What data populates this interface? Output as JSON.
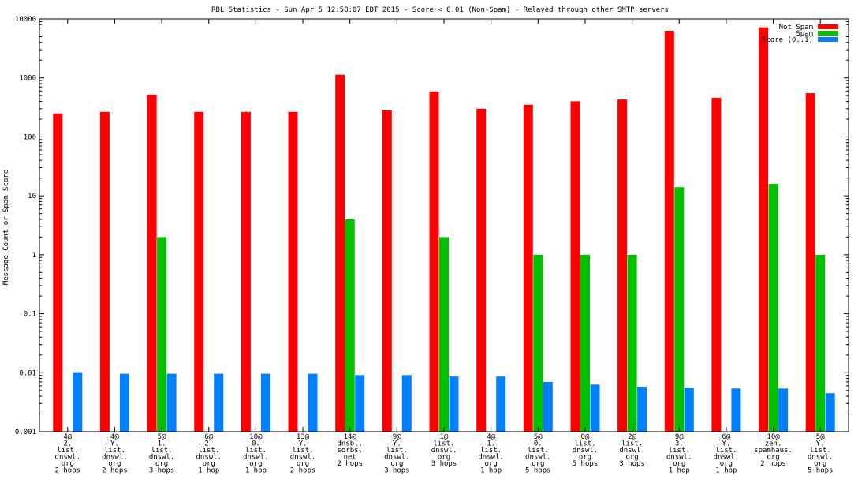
{
  "chart_data": {
    "type": "bar",
    "title": "RBL Statistics - Sun Apr  5 12:58:07 EDT 2015 - Score < 0.01 (Non-Spam) - Relayed through other SMTP servers",
    "xlabel": "",
    "ylabel": "Message Count or Spam Score",
    "yscale": "log",
    "ylim": [
      0.001,
      10000
    ],
    "yticks": [
      "0.001",
      "0.01",
      "0.1",
      "1",
      "10",
      "100",
      "1000",
      "10000"
    ],
    "legend_position": "top-right",
    "categories": [
      [
        "4@",
        "2.",
        "list.",
        "dnswl.",
        "org",
        "2 hops"
      ],
      [
        "4@",
        "Y.",
        "list.",
        "dnswl.",
        "org",
        "2 hops"
      ],
      [
        "5@",
        "1.",
        "list.",
        "dnswl.",
        "org",
        "3 hops"
      ],
      [
        "6@",
        "2.",
        "list.",
        "dnswl.",
        "org",
        "1 hop"
      ],
      [
        "10@",
        "0.",
        "list.",
        "dnswl.",
        "org",
        "1 hop"
      ],
      [
        "13@",
        "Y.",
        "list.",
        "dnswl.",
        "org",
        "2 hops"
      ],
      [
        "14@",
        "dnsbl.",
        "sorbs.",
        "net",
        "2 hops"
      ],
      [
        "9@",
        "Y.",
        "list.",
        "dnswl.",
        "org",
        "3 hops"
      ],
      [
        "1@",
        "list.",
        "dnswl.",
        "org",
        "3 hops"
      ],
      [
        "4@",
        "1.",
        "list.",
        "dnswl.",
        "org",
        "1 hop"
      ],
      [
        "5@",
        "0.",
        "list.",
        "dnswl.",
        "org",
        "5 hops"
      ],
      [
        "0@",
        "list.",
        "dnswl.",
        "org",
        "5 hops"
      ],
      [
        "2@",
        "list.",
        "dnswl.",
        "org",
        "3 hops"
      ],
      [
        "9@",
        "3.",
        "list.",
        "dnswl.",
        "org",
        "1 hop"
      ],
      [
        "6@",
        "Y.",
        "list.",
        "dnswl.",
        "org",
        "1 hop"
      ],
      [
        "10@",
        "zen.",
        "spamhaus.",
        "org",
        "2 hops"
      ],
      [
        "5@",
        "Y.",
        "list.",
        "dnswl.",
        "org",
        "5 hops"
      ]
    ],
    "series": [
      {
        "name": "Not Spam",
        "color": "#ff0000",
        "values": [
          250,
          265,
          520,
          265,
          265,
          265,
          1130,
          280,
          590,
          300,
          350,
          400,
          430,
          6300,
          460,
          7200,
          550
        ]
      },
      {
        "name": "Spam",
        "color": "#00c000",
        "values": [
          null,
          null,
          2,
          null,
          null,
          null,
          4,
          null,
          2,
          null,
          1,
          1,
          1,
          14,
          null,
          16,
          1
        ]
      },
      {
        "name": "Score (0..1)",
        "color": "#0080ff",
        "values": [
          0.0102,
          0.0096,
          0.0096,
          0.0096,
          0.0096,
          0.0096,
          0.0091,
          0.0091,
          0.0086,
          0.0086,
          0.007,
          0.0063,
          0.0058,
          0.0056,
          0.0054,
          0.0054,
          0.0045
        ]
      }
    ]
  }
}
